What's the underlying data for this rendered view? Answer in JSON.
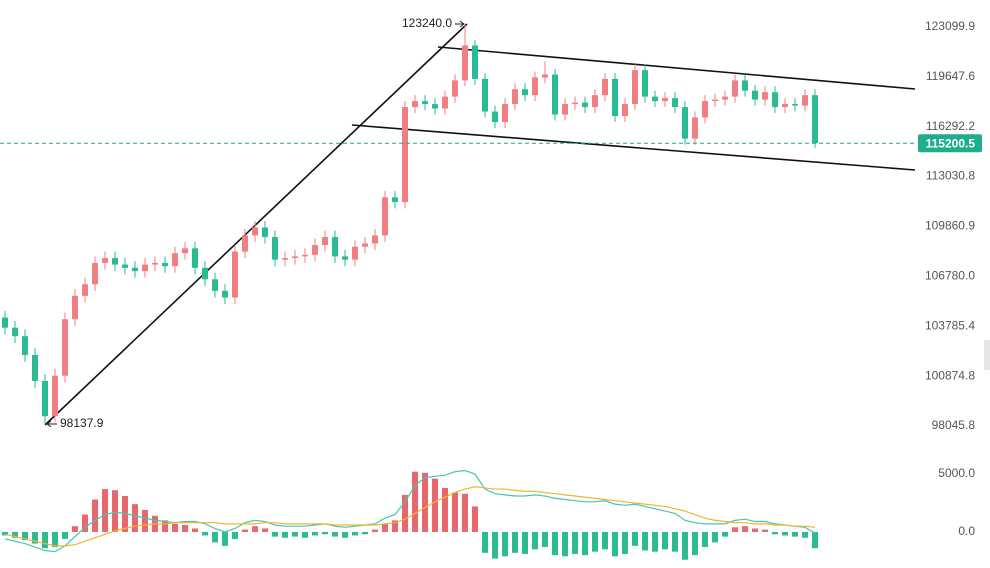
{
  "chart_data": [
    {
      "type": "candlestick",
      "open": [
        104300,
        103700,
        103200,
        102100,
        100600,
        98600,
        100900,
        104200,
        105600,
        106300,
        107600,
        107900,
        107500,
        107300,
        107100,
        107500,
        107600,
        107400,
        108200,
        108500,
        107300,
        106600,
        105900,
        105500,
        108300,
        109300,
        109800,
        109200,
        107800,
        107900,
        108000,
        108100,
        108700,
        109200,
        108000,
        107800,
        108600,
        108800,
        109300,
        111700,
        111400,
        117600,
        118000,
        117800,
        117500,
        118300,
        119400,
        121800,
        119500,
        117300,
        116600,
        117800,
        118800,
        118400,
        119600,
        119800,
        117100,
        117800,
        117900,
        117600,
        118400,
        119500,
        117000,
        117800,
        120100,
        118300,
        118000,
        118200,
        117600,
        115500,
        116900,
        118000,
        118100,
        118300,
        119400,
        118700,
        118100,
        118600,
        117600,
        117800,
        117700,
        118400
      ],
      "high": [
        104700,
        104100,
        103600,
        102500,
        101000,
        101300,
        104600,
        106000,
        106700,
        108000,
        108300,
        108300,
        107900,
        107700,
        107900,
        108000,
        108000,
        108600,
        108900,
        108900,
        107700,
        107000,
        106300,
        108700,
        109700,
        110200,
        110200,
        109600,
        108300,
        108400,
        108500,
        109100,
        109600,
        109600,
        108400,
        109000,
        109200,
        109700,
        112100,
        112100,
        118000,
        118400,
        118400,
        118200,
        118700,
        119800,
        123240.0,
        122200,
        119900,
        117700,
        118200,
        119200,
        119200,
        120000,
        120700,
        120200,
        118200,
        118300,
        118300,
        118800,
        119900,
        119900,
        118200,
        120500,
        120500,
        118700,
        118600,
        118600,
        118000,
        117300,
        118400,
        118500,
        118700,
        119800,
        119800,
        119100,
        119000,
        119000,
        118200,
        118200,
        118800,
        118800
      ],
      "low": [
        103300,
        102800,
        101700,
        100200,
        98137.9,
        98300,
        100500,
        103800,
        105200,
        105900,
        107200,
        107100,
        106900,
        106700,
        106700,
        107100,
        107000,
        107000,
        107800,
        106900,
        106200,
        105500,
        105100,
        105100,
        107900,
        108900,
        108800,
        107400,
        107400,
        107500,
        107600,
        107700,
        108300,
        107600,
        107400,
        107400,
        108200,
        108400,
        108900,
        111000,
        111000,
        117200,
        117400,
        117100,
        117100,
        117900,
        119000,
        119100,
        116900,
        116200,
        116200,
        117400,
        118000,
        118000,
        119200,
        116700,
        116700,
        117400,
        117200,
        117200,
        118000,
        116600,
        116600,
        117400,
        117900,
        117600,
        117600,
        117200,
        115100,
        115100,
        116500,
        117600,
        117700,
        117900,
        118300,
        117700,
        117700,
        117200,
        117200,
        117300,
        117300,
        114900
      ],
      "close": [
        103700,
        103200,
        102100,
        100600,
        98600,
        100900,
        104200,
        105600,
        106300,
        107600,
        107900,
        107500,
        107300,
        107100,
        107500,
        107600,
        107400,
        108200,
        108500,
        107300,
        106600,
        105900,
        105500,
        108300,
        109300,
        109800,
        109200,
        107800,
        107900,
        108000,
        108100,
        108700,
        109200,
        108000,
        107800,
        108600,
        108800,
        109300,
        111700,
        111400,
        117600,
        118000,
        117800,
        117500,
        118300,
        119400,
        121800,
        119500,
        117300,
        116600,
        117800,
        118800,
        118400,
        119600,
        119800,
        117100,
        117800,
        117900,
        117600,
        118400,
        119500,
        117000,
        117800,
        120100,
        118300,
        118000,
        118200,
        117600,
        115500,
        116900,
        118000,
        118100,
        118300,
        119400,
        118700,
        118100,
        118600,
        117600,
        117800,
        117700,
        118400,
        115200.5
      ],
      "up_color": "#ef7f83",
      "down_color": "#2bbb93",
      "log_scale": true,
      "ylim": [
        96440,
        125000
      ],
      "yticks": [
        {
          "value": 98045.8,
          "label": "98045.8"
        },
        {
          "value": 100874.8,
          "label": "100874.8"
        },
        {
          "value": 103785.4,
          "label": "103785.4"
        },
        {
          "value": 106780.0,
          "label": "106780.0"
        },
        {
          "value": 109860.9,
          "label": "109860.9"
        },
        {
          "value": 113030.8,
          "label": "113030.8"
        },
        {
          "value": 116292.2,
          "label": "116292.2"
        },
        {
          "value": 119647.6,
          "label": "119647.6"
        },
        {
          "value": 123099.9,
          "label": "123099.9"
        }
      ],
      "last_price": 115200.5,
      "last_price_color": "#1fae8c",
      "annotations": [
        "123240.0",
        "98137.9"
      ]
    },
    {
      "type": "macd",
      "histogram": [
        -300,
        -500,
        -700,
        -1000,
        -1400,
        -1300,
        -600,
        500,
        1500,
        2800,
        3700,
        3600,
        3100,
        2400,
        1900,
        1400,
        1000,
        700,
        600,
        300,
        -300,
        -900,
        -1200,
        -600,
        200,
        500,
        300,
        -400,
        -500,
        -400,
        -500,
        -300,
        -200,
        -400,
        -500,
        -300,
        -200,
        200,
        700,
        1000,
        3200,
        5200,
        5100,
        4600,
        3800,
        3400,
        3300,
        2200,
        -1800,
        -2300,
        -2100,
        -1800,
        -1900,
        -1500,
        -1300,
        -2000,
        -2100,
        -1900,
        -2000,
        -1700,
        -1500,
        -2100,
        -1900,
        -1200,
        -1600,
        -1700,
        -1500,
        -1700,
        -2400,
        -2000,
        -1300,
        -900,
        -400,
        400,
        500,
        300,
        200,
        -200,
        -300,
        -400,
        -500,
        -1400
      ],
      "hist_up_color": "#e8676c",
      "hist_down_color": "#2fbb92",
      "series": [
        {
          "color": "#43c6b6",
          "values": [
            -600,
            -800,
            -1000,
            -1300,
            -1600,
            -1700,
            -1200,
            -400,
            400,
            1000,
            1500,
            1700,
            1600,
            1400,
            1200,
            1000,
            900,
            800,
            900,
            900,
            700,
            300,
            0,
            300,
            800,
            1000,
            900,
            600,
            500,
            500,
            500,
            600,
            700,
            500,
            400,
            500,
            600,
            700,
            1200,
            1500,
            2600,
            4000,
            4700,
            4800,
            4900,
            5200,
            5300,
            5000,
            3700,
            3300,
            3200,
            3100,
            3100,
            3200,
            3100,
            2900,
            2800,
            2700,
            2600,
            2600,
            2700,
            2400,
            2300,
            2400,
            2200,
            2000,
            1800,
            1600,
            1000,
            800,
            700,
            700,
            700,
            1000,
            1100,
            900,
            900,
            700,
            600,
            500,
            400,
            -100
          ]
        },
        {
          "color": "#f3b42c",
          "values": [
            -200,
            -400,
            -600,
            -800,
            -1000,
            -1200,
            -1200,
            -1100,
            -800,
            -500,
            -200,
            100,
            300,
            500,
            600,
            700,
            700,
            800,
            800,
            800,
            800,
            800,
            700,
            700,
            700,
            700,
            800,
            800,
            700,
            700,
            700,
            700,
            700,
            600,
            600,
            600,
            600,
            600,
            700,
            800,
            1100,
            1600,
            2100,
            2600,
            3000,
            3400,
            3700,
            3900,
            3800,
            3700,
            3700,
            3600,
            3500,
            3500,
            3400,
            3300,
            3200,
            3100,
            3000,
            2900,
            2800,
            2700,
            2600,
            2500,
            2400,
            2300,
            2200,
            2000,
            1800,
            1500,
            1200,
            1000,
            900,
            800,
            800,
            700,
            700,
            600,
            600,
            500,
            500,
            400
          ]
        }
      ],
      "ylim": [
        -2850,
        6640
      ],
      "yticks": [
        {
          "value": 0,
          "label": "0.0"
        },
        {
          "value": 5000,
          "label": "5000.0"
        }
      ]
    }
  ]
}
